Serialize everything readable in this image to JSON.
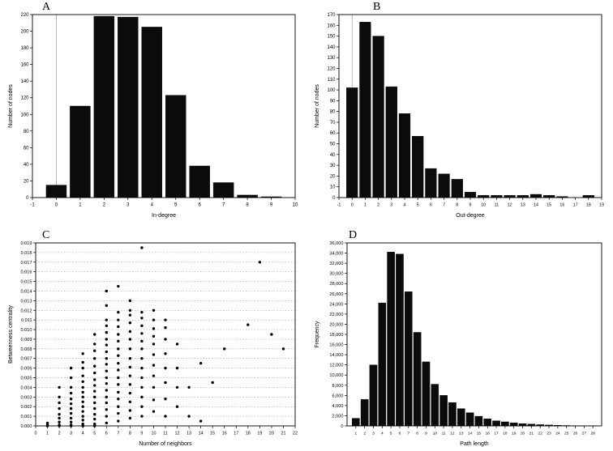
{
  "figure": {
    "background": "#ffffff"
  },
  "chart_data": [
    {
      "panel_label": "A",
      "type": "bar",
      "xlabel": "In-degree",
      "ylabel": "Number of nodes",
      "categories": [
        0,
        1,
        2,
        3,
        4,
        5,
        6,
        7,
        8,
        9
      ],
      "values": [
        15,
        110,
        218,
        217,
        205,
        123,
        38,
        18,
        3,
        1
      ],
      "xlim": [
        -1,
        10
      ],
      "ylim": [
        0,
        220
      ],
      "ytick": 20,
      "xticks_range": [
        -1,
        10
      ],
      "vline_x": 0,
      "bar_color": "#0b0b0b",
      "grid": "none",
      "legend": "none"
    },
    {
      "panel_label": "B",
      "type": "bar",
      "xlabel": "Out-degree",
      "ylabel": "Number of nodes",
      "categories": [
        0,
        1,
        2,
        3,
        4,
        5,
        6,
        7,
        8,
        9,
        10,
        11,
        12,
        13,
        14,
        15,
        16,
        17,
        18
      ],
      "values": [
        102,
        163,
        150,
        103,
        78,
        57,
        27,
        22,
        17,
        5,
        2,
        2,
        2,
        2,
        3,
        2,
        1,
        0,
        2
      ],
      "xlim": [
        -1,
        19
      ],
      "ylim": [
        0,
        170
      ],
      "ytick": 10,
      "xticks_range": [
        -1,
        19
      ],
      "vline_x": 0,
      "bar_color": "#0b0b0b",
      "grid": "none",
      "legend": "none"
    },
    {
      "panel_label": "C",
      "type": "scatter",
      "xlabel": "Number of neighbors",
      "ylabel": "Betweenness centrality",
      "points": [
        [
          1,
          0
        ],
        [
          1,
          0.0001
        ],
        [
          1,
          0.0003
        ],
        [
          2,
          0
        ],
        [
          2,
          0.0001
        ],
        [
          2,
          0.0004
        ],
        [
          2,
          0.0008
        ],
        [
          2,
          0.0012
        ],
        [
          2,
          0.0018
        ],
        [
          2,
          0.0024
        ],
        [
          2,
          0.003
        ],
        [
          2,
          0.004
        ],
        [
          3,
          0
        ],
        [
          3,
          0.0001
        ],
        [
          3,
          0.0004
        ],
        [
          3,
          0.0008
        ],
        [
          3,
          0.0013
        ],
        [
          3,
          0.0018
        ],
        [
          3,
          0.0023
        ],
        [
          3,
          0.0028
        ],
        [
          3,
          0.0034
        ],
        [
          3,
          0.004
        ],
        [
          3,
          0.005
        ],
        [
          3,
          0.006
        ],
        [
          4,
          0
        ],
        [
          4,
          0.0002
        ],
        [
          4,
          0.0006
        ],
        [
          4,
          0.001
        ],
        [
          4,
          0.0015
        ],
        [
          4,
          0.002
        ],
        [
          4,
          0.0025
        ],
        [
          4,
          0.003
        ],
        [
          4,
          0.0035
        ],
        [
          4,
          0.004
        ],
        [
          4,
          0.0046
        ],
        [
          4,
          0.0052
        ],
        [
          4,
          0.006
        ],
        [
          4,
          0.0066
        ],
        [
          4,
          0.0075
        ],
        [
          5,
          0
        ],
        [
          5,
          0.0002
        ],
        [
          5,
          0.0007
        ],
        [
          5,
          0.0012
        ],
        [
          5,
          0.0018
        ],
        [
          5,
          0.0024
        ],
        [
          5,
          0.003
        ],
        [
          5,
          0.0036
        ],
        [
          5,
          0.0042
        ],
        [
          5,
          0.0048
        ],
        [
          5,
          0.0055
        ],
        [
          5,
          0.0062
        ],
        [
          5,
          0.007
        ],
        [
          5,
          0.0078
        ],
        [
          5,
          0.0085
        ],
        [
          5,
          0.0095
        ],
        [
          6,
          0.0003
        ],
        [
          6,
          0.001
        ],
        [
          6,
          0.0017
        ],
        [
          6,
          0.0024
        ],
        [
          6,
          0.003
        ],
        [
          6,
          0.0037
        ],
        [
          6,
          0.0044
        ],
        [
          6,
          0.005
        ],
        [
          6,
          0.0057
        ],
        [
          6,
          0.0064
        ],
        [
          6,
          0.007
        ],
        [
          6,
          0.0077
        ],
        [
          6,
          0.0084
        ],
        [
          6,
          0.009
        ],
        [
          6,
          0.0097
        ],
        [
          6,
          0.0104
        ],
        [
          6,
          0.011
        ],
        [
          6,
          0.0125
        ],
        [
          6,
          0.014
        ],
        [
          7,
          0.0005
        ],
        [
          7,
          0.0013
        ],
        [
          7,
          0.002
        ],
        [
          7,
          0.0028
        ],
        [
          7,
          0.0035
        ],
        [
          7,
          0.0043
        ],
        [
          7,
          0.005
        ],
        [
          7,
          0.0058
        ],
        [
          7,
          0.0065
        ],
        [
          7,
          0.0073
        ],
        [
          7,
          0.008
        ],
        [
          7,
          0.0088
        ],
        [
          7,
          0.0095
        ],
        [
          7,
          0.0103
        ],
        [
          7,
          0.011
        ],
        [
          7,
          0.0118
        ],
        [
          7,
          0.0145
        ],
        [
          8,
          0.0008
        ],
        [
          8,
          0.0016
        ],
        [
          8,
          0.0025
        ],
        [
          8,
          0.0034
        ],
        [
          8,
          0.0043
        ],
        [
          8,
          0.0052
        ],
        [
          8,
          0.0061
        ],
        [
          8,
          0.007
        ],
        [
          8,
          0.008
        ],
        [
          8,
          0.009
        ],
        [
          8,
          0.0098
        ],
        [
          8,
          0.0107
        ],
        [
          8,
          0.0115
        ],
        [
          8,
          0.012
        ],
        [
          8,
          0.013
        ],
        [
          9,
          0.001
        ],
        [
          9,
          0.002
        ],
        [
          9,
          0.003
        ],
        [
          9,
          0.004
        ],
        [
          9,
          0.005
        ],
        [
          9,
          0.006
        ],
        [
          9,
          0.007
        ],
        [
          9,
          0.008
        ],
        [
          9,
          0.0088
        ],
        [
          9,
          0.0096
        ],
        [
          9,
          0.0104
        ],
        [
          9,
          0.0112
        ],
        [
          9,
          0.0118
        ],
        [
          9,
          0.0185
        ],
        [
          10,
          0.0015
        ],
        [
          10,
          0.0027
        ],
        [
          10,
          0.004
        ],
        [
          10,
          0.0052
        ],
        [
          10,
          0.0063
        ],
        [
          10,
          0.0074
        ],
        [
          10,
          0.0085
        ],
        [
          10,
          0.0093
        ],
        [
          10,
          0.0101
        ],
        [
          10,
          0.011
        ],
        [
          10,
          0.012
        ],
        [
          11,
          0.001
        ],
        [
          11,
          0.0028
        ],
        [
          11,
          0.0045
        ],
        [
          11,
          0.006
        ],
        [
          11,
          0.0075
        ],
        [
          11,
          0.009
        ],
        [
          11,
          0.0102
        ],
        [
          11,
          0.011
        ],
        [
          12,
          0.002
        ],
        [
          12,
          0.004
        ],
        [
          12,
          0.006
        ],
        [
          12,
          0.0085
        ],
        [
          13,
          0.001
        ],
        [
          13,
          0.004
        ],
        [
          14,
          0.0005
        ],
        [
          14,
          0.0065
        ],
        [
          15,
          0.0045
        ],
        [
          16,
          0.008
        ],
        [
          18,
          0.0105
        ],
        [
          19,
          0.017
        ],
        [
          20,
          0.0095
        ],
        [
          21,
          0.008
        ]
      ],
      "xlim": [
        0,
        22
      ],
      "ylim": [
        0,
        0.019
      ],
      "ytick": 0.001,
      "yfmt": "dec3",
      "xticks_range": [
        0,
        22
      ],
      "grid": "h-dotted",
      "marker_color": "#000000",
      "legend": "none"
    },
    {
      "panel_label": "D",
      "type": "bar",
      "xlabel": "Path length",
      "ylabel": "Frequency",
      "categories": [
        1,
        2,
        3,
        4,
        5,
        6,
        7,
        8,
        9,
        10,
        11,
        12,
        13,
        14,
        15,
        16,
        17,
        18,
        19,
        20,
        21,
        22,
        23,
        24,
        25,
        26,
        27,
        28
      ],
      "values": [
        1500,
        5200,
        12000,
        24200,
        34200,
        33800,
        26400,
        18400,
        12600,
        8200,
        6000,
        4600,
        3400,
        2600,
        1900,
        1400,
        1000,
        800,
        600,
        450,
        350,
        250,
        180,
        120,
        80,
        50,
        30,
        20
      ],
      "xlim": [
        0,
        29
      ],
      "ylim": [
        0,
        36000
      ],
      "ytick": 2000,
      "yfmt": "comma",
      "xticks_range": [
        1,
        28
      ],
      "bar_color": "#0b0b0b",
      "grid": "none",
      "legend": "none"
    }
  ]
}
